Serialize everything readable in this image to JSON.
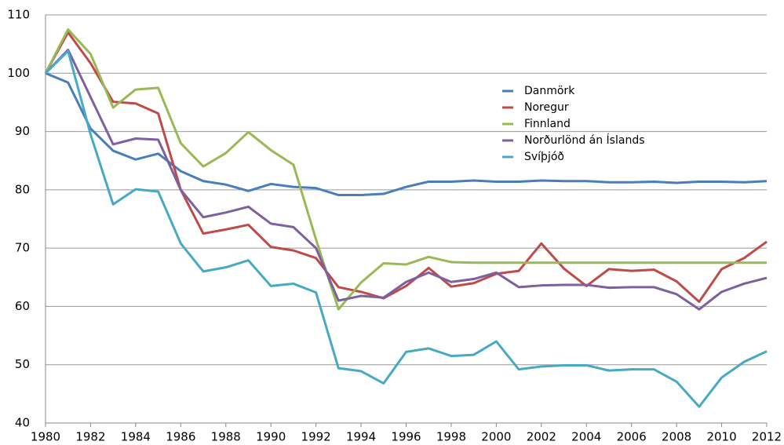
{
  "chart_data": {
    "type": "line",
    "x": [
      1980,
      1981,
      1982,
      1983,
      1984,
      1985,
      1986,
      1987,
      1988,
      1989,
      1990,
      1991,
      1992,
      1993,
      1994,
      1995,
      1996,
      1997,
      1998,
      1999,
      2000,
      2001,
      2002,
      2003,
      2004,
      2005,
      2006,
      2007,
      2008,
      2009,
      2010,
      2011,
      2012
    ],
    "series": [
      {
        "name": "Danmörk",
        "color": "#4a7ebb",
        "values": [
          100,
          98.4,
          90.5,
          86.7,
          85.2,
          86.2,
          83.2,
          81.5,
          80.9,
          79.8,
          81,
          80.5,
          80.3,
          79.1,
          79.1,
          79.3,
          80.5,
          81.4,
          81.4,
          81.6,
          81.4,
          81.4,
          81.6,
          81.5,
          81.5,
          81.3,
          81.3,
          81.4,
          81.2,
          81.4,
          81.4,
          81.3,
          81.5
        ]
      },
      {
        "name": "Noregur",
        "color": "#be4b48",
        "values": [
          100,
          107,
          101.7,
          95.1,
          94.8,
          93.1,
          80,
          72.5,
          73.2,
          74,
          70.2,
          69.6,
          68.3,
          63.3,
          62.5,
          61.4,
          63.5,
          66.6,
          63.4,
          64,
          65.6,
          66.1,
          70.8,
          66.5,
          63.5,
          66.4,
          66.1,
          66.3,
          64.3,
          60.8,
          66.4,
          68.3,
          71.1
        ]
      },
      {
        "name": "Finnland",
        "color": "#98b954",
        "values": [
          100,
          107.5,
          103.3,
          94.1,
          97.2,
          97.5,
          88,
          84,
          86.3,
          89.9,
          86.8,
          84.3,
          71.5,
          59.5,
          64.1,
          67.4,
          67.2,
          68.5,
          67.6,
          67.5,
          67.5,
          67.5,
          67.5,
          67.5,
          67.5,
          67.5,
          67.5,
          67.5,
          67.5,
          67.5,
          67.5,
          67.5,
          67.5
        ]
      },
      {
        "name": "Norðurlönd án Íslands",
        "color": "#7d60a0",
        "values": [
          100,
          104,
          95.9,
          87.8,
          88.8,
          88.6,
          80,
          75.3,
          76.1,
          77.1,
          74.2,
          73.6,
          70,
          61,
          61.8,
          61.5,
          64.2,
          65.8,
          64.2,
          64.7,
          65.8,
          63.3,
          63.6,
          63.7,
          63.7,
          63.2,
          63.3,
          63.3,
          62.1,
          59.5,
          62.5,
          63.9,
          64.9
        ]
      },
      {
        "name": "Svíþjóð",
        "color": "#46aac5",
        "values": [
          100,
          103.8,
          89.5,
          77.5,
          80.1,
          79.7,
          70.8,
          66,
          66.7,
          67.9,
          63.5,
          63.9,
          62.4,
          49.4,
          48.9,
          46.8,
          52.2,
          52.8,
          51.5,
          51.7,
          54,
          49.2,
          49.7,
          49.9,
          49.9,
          49,
          49.2,
          49.2,
          47.1,
          42.8,
          47.8,
          50.5,
          52.3
        ]
      }
    ],
    "xlim": [
      1980,
      2012
    ],
    "xticks": [
      1980,
      1982,
      1984,
      1986,
      1988,
      1990,
      1992,
      1994,
      1996,
      1998,
      2000,
      2002,
      2004,
      2006,
      2008,
      2010,
      2012
    ],
    "ylim": [
      40,
      110
    ],
    "yticks": [
      40,
      50,
      60,
      70,
      80,
      90,
      100,
      110
    ],
    "grid": true,
    "legend": "upper right"
  }
}
